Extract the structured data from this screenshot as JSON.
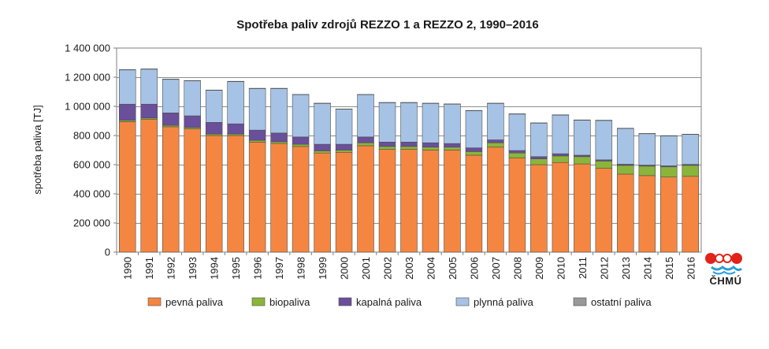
{
  "chart_data": {
    "type": "bar",
    "stacked": true,
    "title": "Spotřeba paliv zdrojů REZZO 1 a REZZO 2, 1990–2016",
    "ylabel": "spotřeba paliva [TJ]",
    "xlabel": "",
    "ylim": [
      0,
      1400000
    ],
    "yticks": [
      0,
      200000,
      400000,
      600000,
      800000,
      1000000,
      1200000,
      1400000
    ],
    "ytick_labels": [
      "0",
      "200 000",
      "400 000",
      "600 000",
      "800 000",
      "1 000 000",
      "1 200 000",
      "1 400 000"
    ],
    "grid": true,
    "legend_position": "bottom",
    "categories": [
      "1990",
      "1991",
      "1992",
      "1993",
      "1994",
      "1995",
      "1996",
      "1997",
      "1998",
      "1999",
      "2000",
      "2001",
      "2002",
      "2003",
      "2004",
      "2005",
      "2006",
      "2007",
      "2008",
      "2009",
      "2010",
      "2011",
      "2012",
      "2013",
      "2014",
      "2015",
      "2016"
    ],
    "series": [
      {
        "name": "pevná paliva",
        "color": "#f58641",
        "values": [
          895000,
          910000,
          860000,
          845000,
          800000,
          800000,
          755000,
          745000,
          725000,
          680000,
          685000,
          730000,
          705000,
          705000,
          700000,
          700000,
          665000,
          720000,
          645000,
          600000,
          615000,
          605000,
          575000,
          535000,
          525000,
          515000,
          520000
        ]
      },
      {
        "name": "biopaliva",
        "color": "#8bb53a",
        "values": [
          10000,
          10000,
          10000,
          10000,
          10000,
          10000,
          12000,
          12000,
          15000,
          15000,
          15000,
          20000,
          20000,
          20000,
          20000,
          20000,
          25000,
          30000,
          35000,
          40000,
          45000,
          50000,
          50000,
          60000,
          65000,
          70000,
          75000
        ]
      },
      {
        "name": "kapalná paliva",
        "color": "#6a4f9b",
        "values": [
          110000,
          95000,
          85000,
          80000,
          80000,
          70000,
          70000,
          60000,
          50000,
          45000,
          40000,
          40000,
          30000,
          30000,
          30000,
          25000,
          25000,
          20000,
          17000,
          15000,
          15000,
          10000,
          8000,
          8000,
          7000,
          7000,
          7000
        ]
      },
      {
        "name": "plynná paliva",
        "color": "#a6c3e6",
        "values": [
          235000,
          240000,
          230000,
          240000,
          220000,
          290000,
          285000,
          305000,
          290000,
          280000,
          240000,
          290000,
          270000,
          270000,
          270000,
          270000,
          255000,
          250000,
          250000,
          230000,
          265000,
          240000,
          270000,
          245000,
          215000,
          205000,
          205000
        ]
      },
      {
        "name": "ostatní paliva",
        "color": "#999999",
        "values": [
          2000,
          2000,
          2000,
          2000,
          2000,
          2000,
          2000,
          2000,
          2000,
          2000,
          2000,
          2000,
          2000,
          2000,
          2000,
          2000,
          2000,
          2000,
          2000,
          2000,
          2000,
          2000,
          2000,
          2000,
          2000,
          2000,
          2000
        ]
      }
    ]
  },
  "logo": {
    "text": "ČHMÚ"
  }
}
